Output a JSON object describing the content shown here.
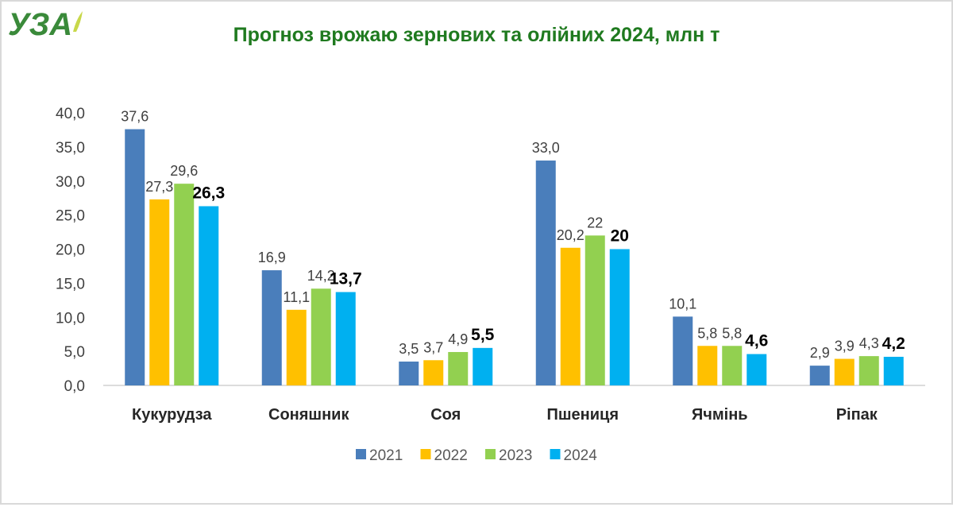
{
  "logo": {
    "text": "УЗА",
    "color": "#3a8a3a"
  },
  "chart_data": {
    "type": "bar",
    "title": "Прогноз врожаю зернових та олійних 2024, млн т",
    "title_color": "#1f7a1f",
    "xlabel": "",
    "ylabel": "",
    "ylim": [
      0,
      40
    ],
    "yticks": [
      "0,0",
      "5,0",
      "10,0",
      "15,0",
      "20,0",
      "25,0",
      "30,0",
      "35,0",
      "40,0"
    ],
    "grid": false,
    "legend_position": "bottom",
    "categories": [
      "Кукурудза",
      "Соняшник",
      "Соя",
      "Пшениця",
      "Ячмінь",
      "Ріпак"
    ],
    "series": [
      {
        "name": "2021",
        "color": "#4a7ebb",
        "values": [
          37.6,
          16.9,
          3.5,
          33.0,
          10.1,
          2.9
        ],
        "labels": [
          "37,6",
          "16,9",
          "3,5",
          "33,0",
          "10,1",
          "2,9"
        ],
        "bold": false
      },
      {
        "name": "2022",
        "color": "#ffc000",
        "values": [
          27.3,
          11.1,
          3.7,
          20.2,
          5.8,
          3.9
        ],
        "labels": [
          "27,3",
          "11,1",
          "3,7",
          "20,2",
          "5,8",
          "3,9"
        ],
        "bold": false
      },
      {
        "name": "2023",
        "color": "#92d050",
        "values": [
          29.6,
          14.2,
          4.9,
          22,
          5.8,
          4.3
        ],
        "labels": [
          "29,6",
          "14,2",
          "4,9",
          "22",
          "5,8",
          "4,3"
        ],
        "bold": false
      },
      {
        "name": "2024",
        "color": "#00b0f0",
        "values": [
          26.3,
          13.7,
          5.5,
          20,
          4.6,
          4.2
        ],
        "labels": [
          "26,3",
          "13,7",
          "5,5",
          "20",
          "4,6",
          "4,2"
        ],
        "bold": true
      }
    ]
  }
}
